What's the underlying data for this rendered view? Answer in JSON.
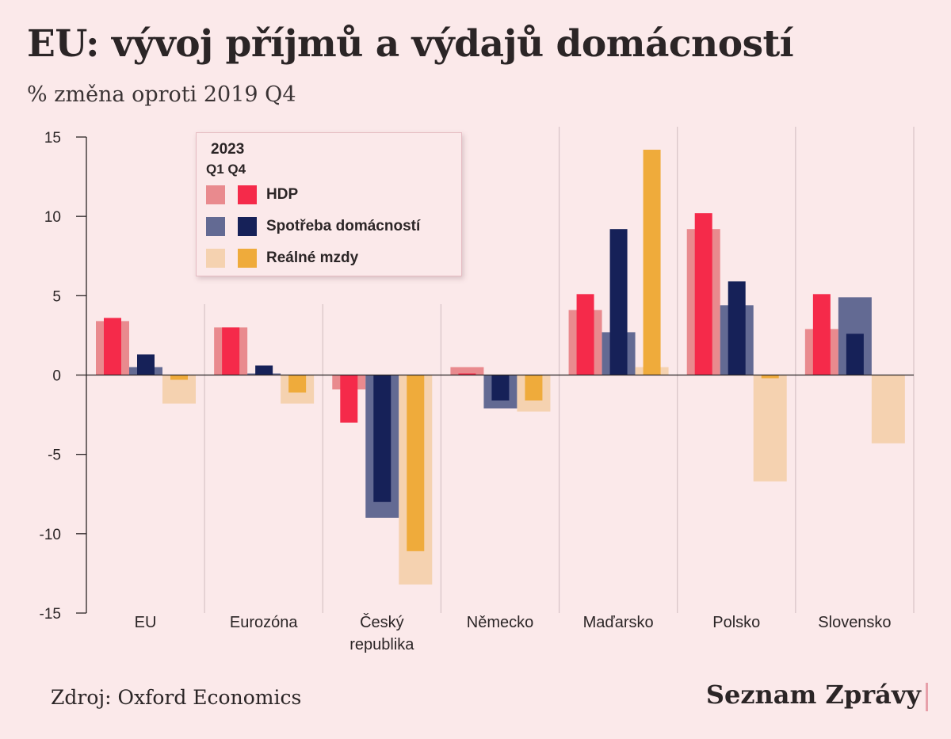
{
  "title": "EU: vývoj příjmů a výdajů domácností",
  "subtitle": "% změna oproti 2019 Q4",
  "source": "Zdroj: Oxford Economics",
  "brand": "Seznam Zprávy",
  "legend": {
    "year": "2023",
    "quarters": "Q1 Q4"
  },
  "colors": {
    "background": "#fbe9ea",
    "hdp_q1": "#e98a8e",
    "hdp_q4": "#f52a4a",
    "spotreba_q1": "#636a93",
    "spotreba_q4": "#162158",
    "mzdy_q1": "#f5d2b0",
    "mzdy_q4": "#efab3b"
  },
  "chart_data": {
    "type": "bar",
    "title": "EU: vývoj příjmů a výdajů domácností",
    "subtitle": "% změna oproti 2019 Q4",
    "ylim": [
      -15,
      15
    ],
    "yticks": [
      15,
      10,
      5,
      0,
      -5,
      -10,
      -15
    ],
    "grid": false,
    "legend_position": "top-left",
    "categories": [
      "EU",
      "Eurozóna",
      "Český republika",
      "Německo",
      "Maďarsko",
      "Polsko",
      "Slovensko"
    ],
    "category_lines": [
      [
        "EU"
      ],
      [
        "Eurozóna"
      ],
      [
        "Český",
        "republika"
      ],
      [
        "Německo"
      ],
      [
        "Maďarsko"
      ],
      [
        "Polsko"
      ],
      [
        "Slovensko"
      ]
    ],
    "series": [
      {
        "name": "HDP",
        "period": "2023 Q1",
        "values": [
          3.4,
          3.0,
          -0.9,
          0.5,
          4.1,
          9.2,
          2.9
        ]
      },
      {
        "name": "HDP",
        "period": "2023 Q4",
        "values": [
          3.6,
          3.0,
          -3.0,
          0.1,
          5.1,
          10.2,
          5.1
        ]
      },
      {
        "name": "Spotřeba domácností",
        "period": "2023 Q1",
        "values": [
          0.5,
          0.1,
          -9.0,
          -2.1,
          2.7,
          4.4,
          4.9
        ]
      },
      {
        "name": "Spotřeba domácností",
        "period": "2023 Q4",
        "values": [
          1.3,
          0.6,
          -8.0,
          -1.6,
          9.2,
          5.9,
          2.6
        ]
      },
      {
        "name": "Reálné mzdy",
        "period": "2023 Q1",
        "values": [
          -1.8,
          -1.8,
          -13.2,
          -2.3,
          0.5,
          -6.7,
          -4.3
        ]
      },
      {
        "name": "Reálné mzdy",
        "period": "2023 Q4",
        "values": [
          -0.3,
          -1.1,
          -11.1,
          -1.6,
          14.2,
          -0.2,
          0.0
        ]
      }
    ]
  }
}
